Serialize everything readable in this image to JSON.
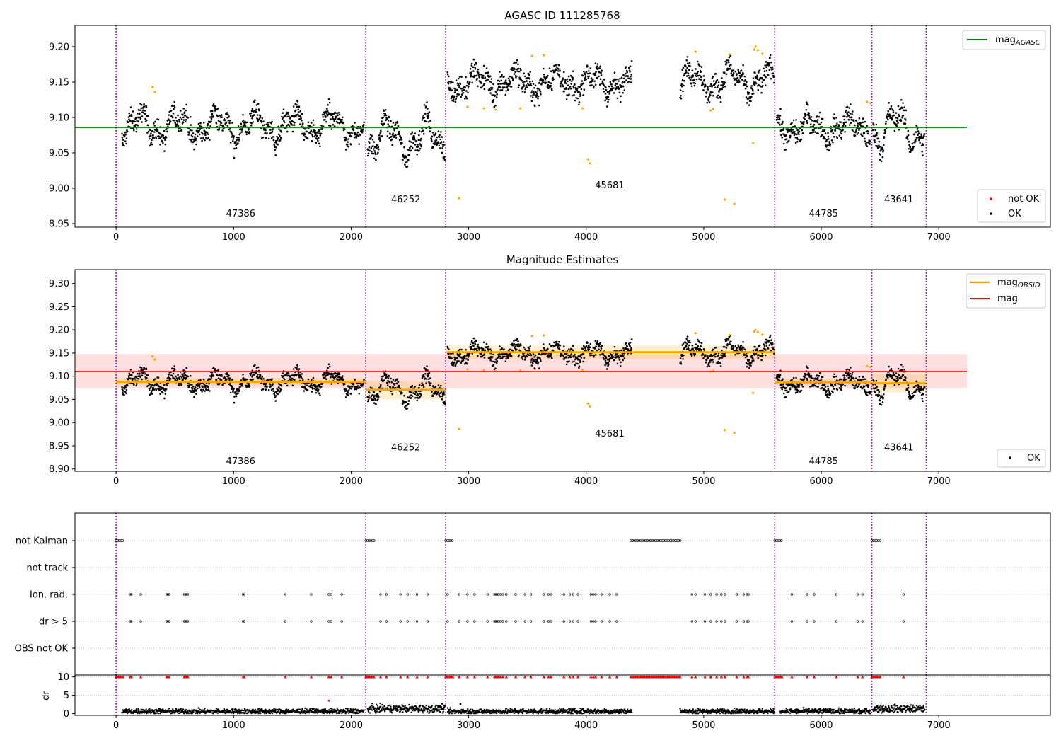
{
  "chart_data": [
    {
      "type": "scatter",
      "title": "AGASC ID 111285768",
      "xlim": [
        -350,
        7950
      ],
      "ylim": [
        8.945,
        9.23
      ],
      "xticks": [
        0,
        1000,
        2000,
        3000,
        4000,
        5000,
        6000,
        7000
      ],
      "yticks": [
        8.95,
        9.0,
        9.05,
        9.1,
        9.15,
        9.2
      ],
      "obsid_boundaries": [
        0,
        2125,
        2805,
        5605,
        6430,
        6893
      ],
      "obsid_labels": [
        {
          "text": "47386",
          "x": 1060,
          "y": 8.96
        },
        {
          "text": "46252",
          "x": 2465,
          "y": 8.98
        },
        {
          "text": "45681",
          "x": 4200,
          "y": 9.0
        },
        {
          "text": "44785",
          "x": 6020,
          "y": 8.96
        },
        {
          "text": "43641",
          "x": 6660,
          "y": 8.98
        }
      ],
      "reference_lines": [
        {
          "label": "magAGASC",
          "y": 9.086,
          "x_range": [
            -350,
            7240
          ],
          "color": "#008000"
        }
      ],
      "segments": [
        {
          "x_range": [
            50,
            2110
          ],
          "mean": 9.088,
          "amp": 0.028
        },
        {
          "x_range": [
            2140,
            2800
          ],
          "mean": 9.071,
          "amp": 0.038
        },
        {
          "x_range": [
            2820,
            4390
          ],
          "mean": 9.15,
          "amp": 0.022
        },
        {
          "x_range": [
            4800,
            5600
          ],
          "mean": 9.152,
          "amp": 0.027
        },
        {
          "x_range": [
            5620,
            6420
          ],
          "mean": 9.086,
          "amp": 0.022
        },
        {
          "x_range": [
            6440,
            6880
          ],
          "mean": 9.085,
          "amp": 0.04
        }
      ],
      "outliers": [
        [
          310,
          9.143
        ],
        [
          330,
          9.136
        ],
        [
          2920,
          8.986
        ],
        [
          2990,
          9.115
        ],
        [
          3130,
          9.113
        ],
        [
          3230,
          9.111
        ],
        [
          3440,
          9.113
        ],
        [
          3540,
          9.187
        ],
        [
          3640,
          9.188
        ],
        [
          3970,
          9.113
        ],
        [
          4015,
          9.041
        ],
        [
          4030,
          9.035
        ],
        [
          4930,
          9.193
        ],
        [
          5060,
          9.11
        ],
        [
          5080,
          9.112
        ],
        [
          5180,
          8.984
        ],
        [
          5220,
          9.189
        ],
        [
          5260,
          8.978
        ],
        [
          5420,
          9.064
        ],
        [
          5430,
          9.196
        ],
        [
          5440,
          9.2
        ],
        [
          5460,
          9.195
        ],
        [
          5500,
          9.19
        ],
        [
          6390,
          9.122
        ],
        [
          6420,
          9.12
        ]
      ],
      "legend": {
        "lines": [
          {
            "label": "mag",
            "sub": "AGASC",
            "color": "#008000"
          }
        ],
        "markers": [
          {
            "label": "not OK",
            "color": "#ff0000"
          },
          {
            "label": "OK",
            "color": "#000000"
          }
        ]
      },
      "colors": {
        "ok": "#000000",
        "outlier": "#ffa500",
        "not_ok": "#ff0000",
        "boundary": "#800080"
      }
    },
    {
      "type": "scatter",
      "title": "Magnitude Estimates",
      "xlim": [
        -350,
        7950
      ],
      "ylim": [
        8.895,
        9.33
      ],
      "xticks": [
        0,
        1000,
        2000,
        3000,
        4000,
        5000,
        6000,
        7000
      ],
      "yticks": [
        8.9,
        8.95,
        9.0,
        9.05,
        9.1,
        9.15,
        9.2,
        9.25,
        9.3
      ],
      "obsid_labels": [
        {
          "text": "47386",
          "x": 1060,
          "y": 8.91
        },
        {
          "text": "46252",
          "x": 2465,
          "y": 8.94
        },
        {
          "text": "45681",
          "x": 4200,
          "y": 8.97
        },
        {
          "text": "44785",
          "x": 6020,
          "y": 8.91
        },
        {
          "text": "43641",
          "x": 6660,
          "y": 8.94
        }
      ],
      "mean_mag": {
        "y": 9.11,
        "band": [
          9.074,
          9.148
        ],
        "x_range": [
          -350,
          7240
        ],
        "color": "#ff0000"
      },
      "obsid_mags": [
        {
          "x_range": [
            0,
            2125
          ],
          "y": 9.088,
          "band": [
            9.08,
            9.096
          ]
        },
        {
          "x_range": [
            2125,
            2805
          ],
          "y": 9.071,
          "band": [
            9.05,
            9.09
          ]
        },
        {
          "x_range": [
            2805,
            5605
          ],
          "y": 9.152,
          "band": [
            9.137,
            9.166
          ]
        },
        {
          "x_range": [
            5605,
            6430
          ],
          "y": 9.087,
          "band": [
            9.08,
            9.095
          ]
        },
        {
          "x_range": [
            6430,
            6893
          ],
          "y": 9.085,
          "band": [
            9.065,
            9.105
          ]
        }
      ],
      "legend": {
        "lines": [
          {
            "label": "mag",
            "sub": "OBSID",
            "color": "#ffa500"
          },
          {
            "label": "mag",
            "sub": "",
            "color": "#ff0000"
          }
        ],
        "markers": [
          {
            "label": "OK",
            "color": "#000000"
          }
        ]
      }
    },
    {
      "type": "scatter",
      "title": "",
      "xlim": [
        -350,
        7950
      ],
      "xticks": [
        0,
        1000,
        2000,
        3000,
        4000,
        5000,
        6000,
        7000
      ],
      "flag_rows": [
        "not Kalman",
        "not track",
        "Ion. rad.",
        "dr > 5",
        "OBS not OK"
      ],
      "not_kalman_ranges": [
        [
          0,
          60
        ],
        [
          2125,
          2200
        ],
        [
          2805,
          2870
        ],
        [
          4380,
          4800
        ],
        [
          5605,
          5670
        ],
        [
          6430,
          6500
        ]
      ],
      "ion_rad_x": [
        120,
        130,
        210,
        430,
        440,
        450,
        580,
        590,
        600,
        610,
        1080,
        1090,
        1440,
        1660,
        1810,
        1830,
        1920,
        2250,
        2300,
        2420,
        2480,
        2560,
        2650,
        2820,
        2920,
        2990,
        3050,
        3160,
        3220,
        3230,
        3240,
        3250,
        3270,
        3290,
        3320,
        3400,
        3480,
        3530,
        3640,
        3680,
        3700,
        3810,
        3860,
        3890,
        3930,
        4040,
        4060,
        4080,
        4130,
        4200,
        4260,
        4900,
        4930,
        5010,
        5060,
        5110,
        5150,
        5180,
        5280,
        5340,
        5370,
        5380,
        5750,
        5880,
        5940,
        6130,
        6310,
        6350,
        6700
      ],
      "dr_panel": {
        "ylabel": "dr",
        "yticks": [
          0,
          5,
          10
        ],
        "ylim": [
          -0.5,
          10.5
        ],
        "clip_value": 10,
        "gaps": [
          [
            4390,
            4800
          ],
          [
            5600,
            5650
          ]
        ],
        "extra_points": [
          [
            1810,
            3.5
          ],
          [
            2930,
            2.6
          ]
        ]
      }
    }
  ]
}
